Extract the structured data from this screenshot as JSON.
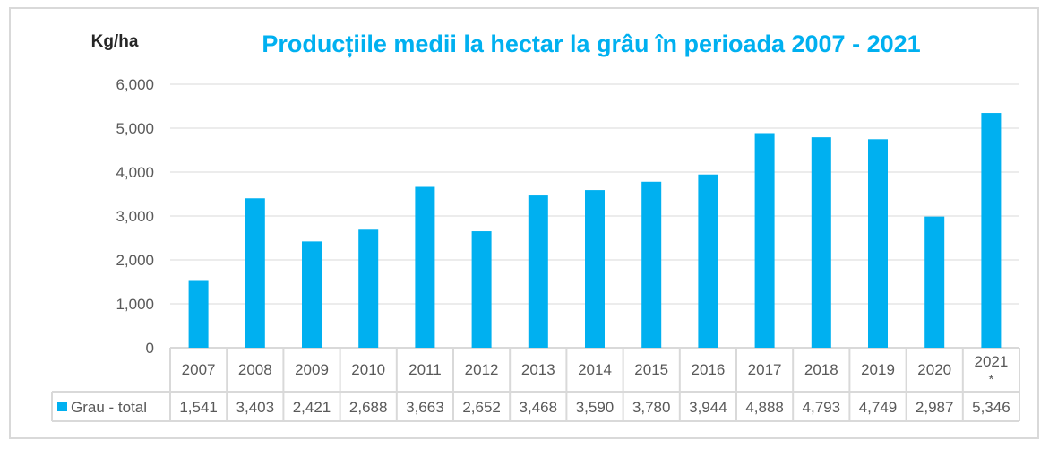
{
  "chart_data": {
    "type": "bar",
    "title": "Producțiile medii la hectar la grâu în perioada 2007 - 2021",
    "ylabel": "Kg/ha",
    "xlabel": "",
    "categories": [
      "2007",
      "2008",
      "2009",
      "2010",
      "2011",
      "2012",
      "2013",
      "2014",
      "2015",
      "2016",
      "2017",
      "2018",
      "2019",
      "2020",
      "2021 *"
    ],
    "series": [
      {
        "name": "Grau - total",
        "values": [
          1541,
          3403,
          2421,
          2688,
          3663,
          2652,
          3468,
          3590,
          3780,
          3944,
          4888,
          4793,
          4749,
          2987,
          5346
        ],
        "labels": [
          "1,541",
          "3,403",
          "2,421",
          "2,688",
          "3,663",
          "2,652",
          "3,468",
          "3,590",
          "3,780",
          "3,944",
          "4,888",
          "4,793",
          "4,749",
          "2,987",
          "5,346"
        ]
      }
    ],
    "ylim": [
      0,
      6000
    ],
    "yticks": [
      "0",
      "1,000",
      "2,000",
      "3,000",
      "4,000",
      "5,000",
      "6,000"
    ],
    "grid": true,
    "legend": "data-table",
    "colors": {
      "bar": "#00b0f0",
      "title": "#00b0f0",
      "grid": "#d9d9d9",
      "text": "#595959"
    }
  }
}
